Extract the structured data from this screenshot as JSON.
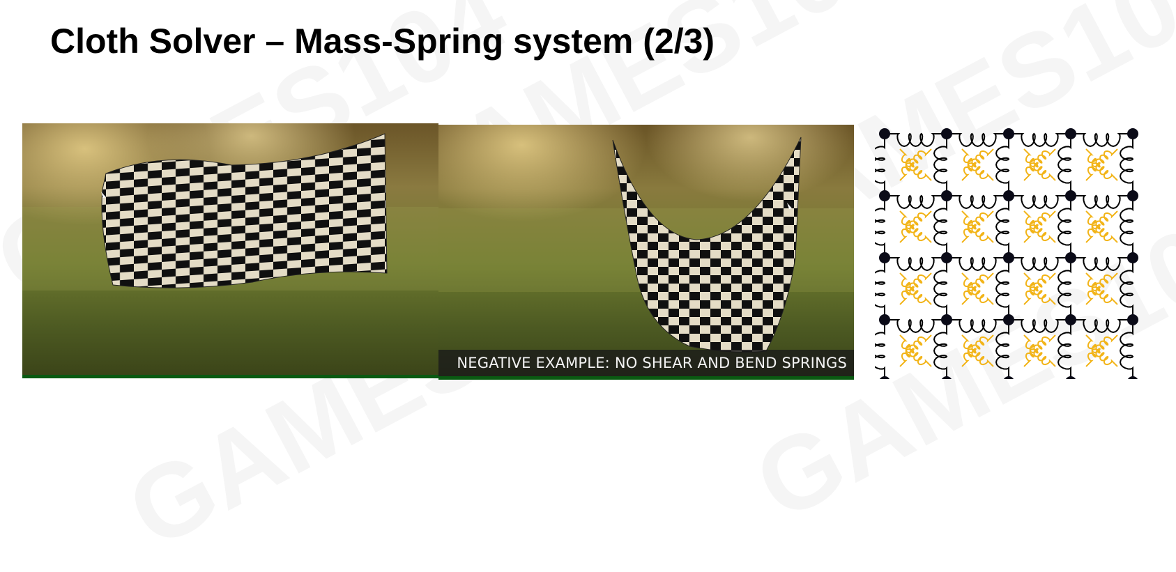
{
  "slide": {
    "title": "Cloth Solver – Mass-Spring system (2/3)",
    "watermark_text": "GAMES104"
  },
  "video_left": {
    "content": "waving checkerboard cloth simulation"
  },
  "video_right": {
    "caption": "NEGATIVE EXAMPLE: NO SHEAR AND BEND SPRINGS"
  },
  "diagram": {
    "grid_cells": 4,
    "mass_color": "#0b0b18",
    "structural_spring_color": "#000000",
    "shear_spring_color": "#f2b418"
  },
  "colors": {
    "video_bottom_strip": "#0a5a12",
    "checker_light": "#e7dfc9",
    "checker_dark": "#0d0d0d"
  }
}
